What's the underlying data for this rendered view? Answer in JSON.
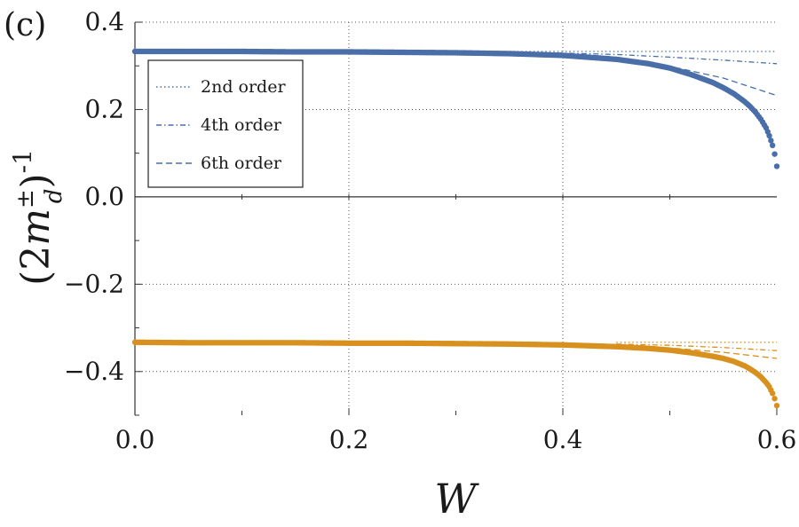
{
  "chart_data": {
    "type": "scatter",
    "panel_label": "(c)",
    "xlabel": "W",
    "ylabel": "(2m_d^±)^-1",
    "xlim": [
      0.0,
      0.6
    ],
    "ylim": [
      -0.5,
      0.4
    ],
    "x_ticks": [
      {
        "value": 0.0,
        "label": "0.0"
      },
      {
        "value": 0.2,
        "label": "0.2"
      },
      {
        "value": 0.4,
        "label": "0.4"
      },
      {
        "value": 0.6,
        "label": "0.6"
      }
    ],
    "y_ticks": [
      {
        "value": 0.4,
        "label": "0.4"
      },
      {
        "value": 0.2,
        "label": "0.2"
      },
      {
        "value": 0.0,
        "label": "0.0"
      },
      {
        "value": -0.2,
        "label": "−0.2"
      },
      {
        "value": -0.4,
        "label": "−0.4"
      }
    ],
    "grid": "dotted",
    "legend_position": "upper-left",
    "legend": [
      {
        "label": "2nd order",
        "style": "dotted"
      },
      {
        "label": "4th order",
        "style": "dashdot"
      },
      {
        "label": "6th order",
        "style": "dashed"
      }
    ],
    "colors": {
      "upper": "#4a6ea8",
      "lower": "#d8901e",
      "axis": "#333333",
      "grid": "#555555"
    },
    "series": [
      {
        "role": "upper-numerical",
        "x": [
          0.0,
          0.05,
          0.1,
          0.15,
          0.2,
          0.25,
          0.3,
          0.35,
          0.4,
          0.45,
          0.48,
          0.5,
          0.52,
          0.54,
          0.55,
          0.56,
          0.57,
          0.575,
          0.58,
          0.585,
          0.59,
          0.593,
          0.596,
          0.598,
          0.6
        ],
        "y": [
          0.333,
          0.333,
          0.333,
          0.332,
          0.332,
          0.331,
          0.33,
          0.328,
          0.324,
          0.315,
          0.305,
          0.295,
          0.28,
          0.262,
          0.25,
          0.236,
          0.218,
          0.207,
          0.194,
          0.178,
          0.158,
          0.14,
          0.118,
          0.098,
          0.07
        ]
      },
      {
        "role": "lower-numerical",
        "x": [
          0.0,
          0.05,
          0.1,
          0.15,
          0.2,
          0.25,
          0.3,
          0.35,
          0.4,
          0.45,
          0.48,
          0.5,
          0.52,
          0.54,
          0.55,
          0.56,
          0.57,
          0.575,
          0.58,
          0.585,
          0.59,
          0.593,
          0.596,
          0.598,
          0.6
        ],
        "y": [
          -0.333,
          -0.334,
          -0.334,
          -0.334,
          -0.335,
          -0.335,
          -0.336,
          -0.337,
          -0.339,
          -0.343,
          -0.347,
          -0.351,
          -0.357,
          -0.365,
          -0.37,
          -0.377,
          -0.387,
          -0.394,
          -0.402,
          -0.412,
          -0.425,
          -0.435,
          -0.45,
          -0.462,
          -0.478
        ]
      },
      {
        "role": "upper-2nd",
        "style": "dotted",
        "x": [
          0.35,
          0.6
        ],
        "y": [
          0.333,
          0.333
        ]
      },
      {
        "role": "upper-4th",
        "style": "dashdot",
        "x": [
          0.35,
          0.4,
          0.45,
          0.5,
          0.55,
          0.6
        ],
        "y": [
          0.331,
          0.329,
          0.326,
          0.32,
          0.313,
          0.305
        ]
      },
      {
        "role": "upper-6th",
        "style": "dashed",
        "x": [
          0.35,
          0.4,
          0.45,
          0.5,
          0.55,
          0.6
        ],
        "y": [
          0.33,
          0.325,
          0.316,
          0.299,
          0.272,
          0.232
        ]
      },
      {
        "role": "lower-2nd",
        "style": "dotted",
        "x": [
          0.45,
          0.6
        ],
        "y": [
          -0.333,
          -0.333
        ]
      },
      {
        "role": "lower-4th",
        "style": "dashdot",
        "x": [
          0.45,
          0.5,
          0.55,
          0.6
        ],
        "y": [
          -0.337,
          -0.34,
          -0.345,
          -0.352
        ]
      },
      {
        "role": "lower-6th",
        "style": "dashed",
        "x": [
          0.45,
          0.5,
          0.55,
          0.6
        ],
        "y": [
          -0.34,
          -0.346,
          -0.356,
          -0.37
        ]
      }
    ]
  }
}
